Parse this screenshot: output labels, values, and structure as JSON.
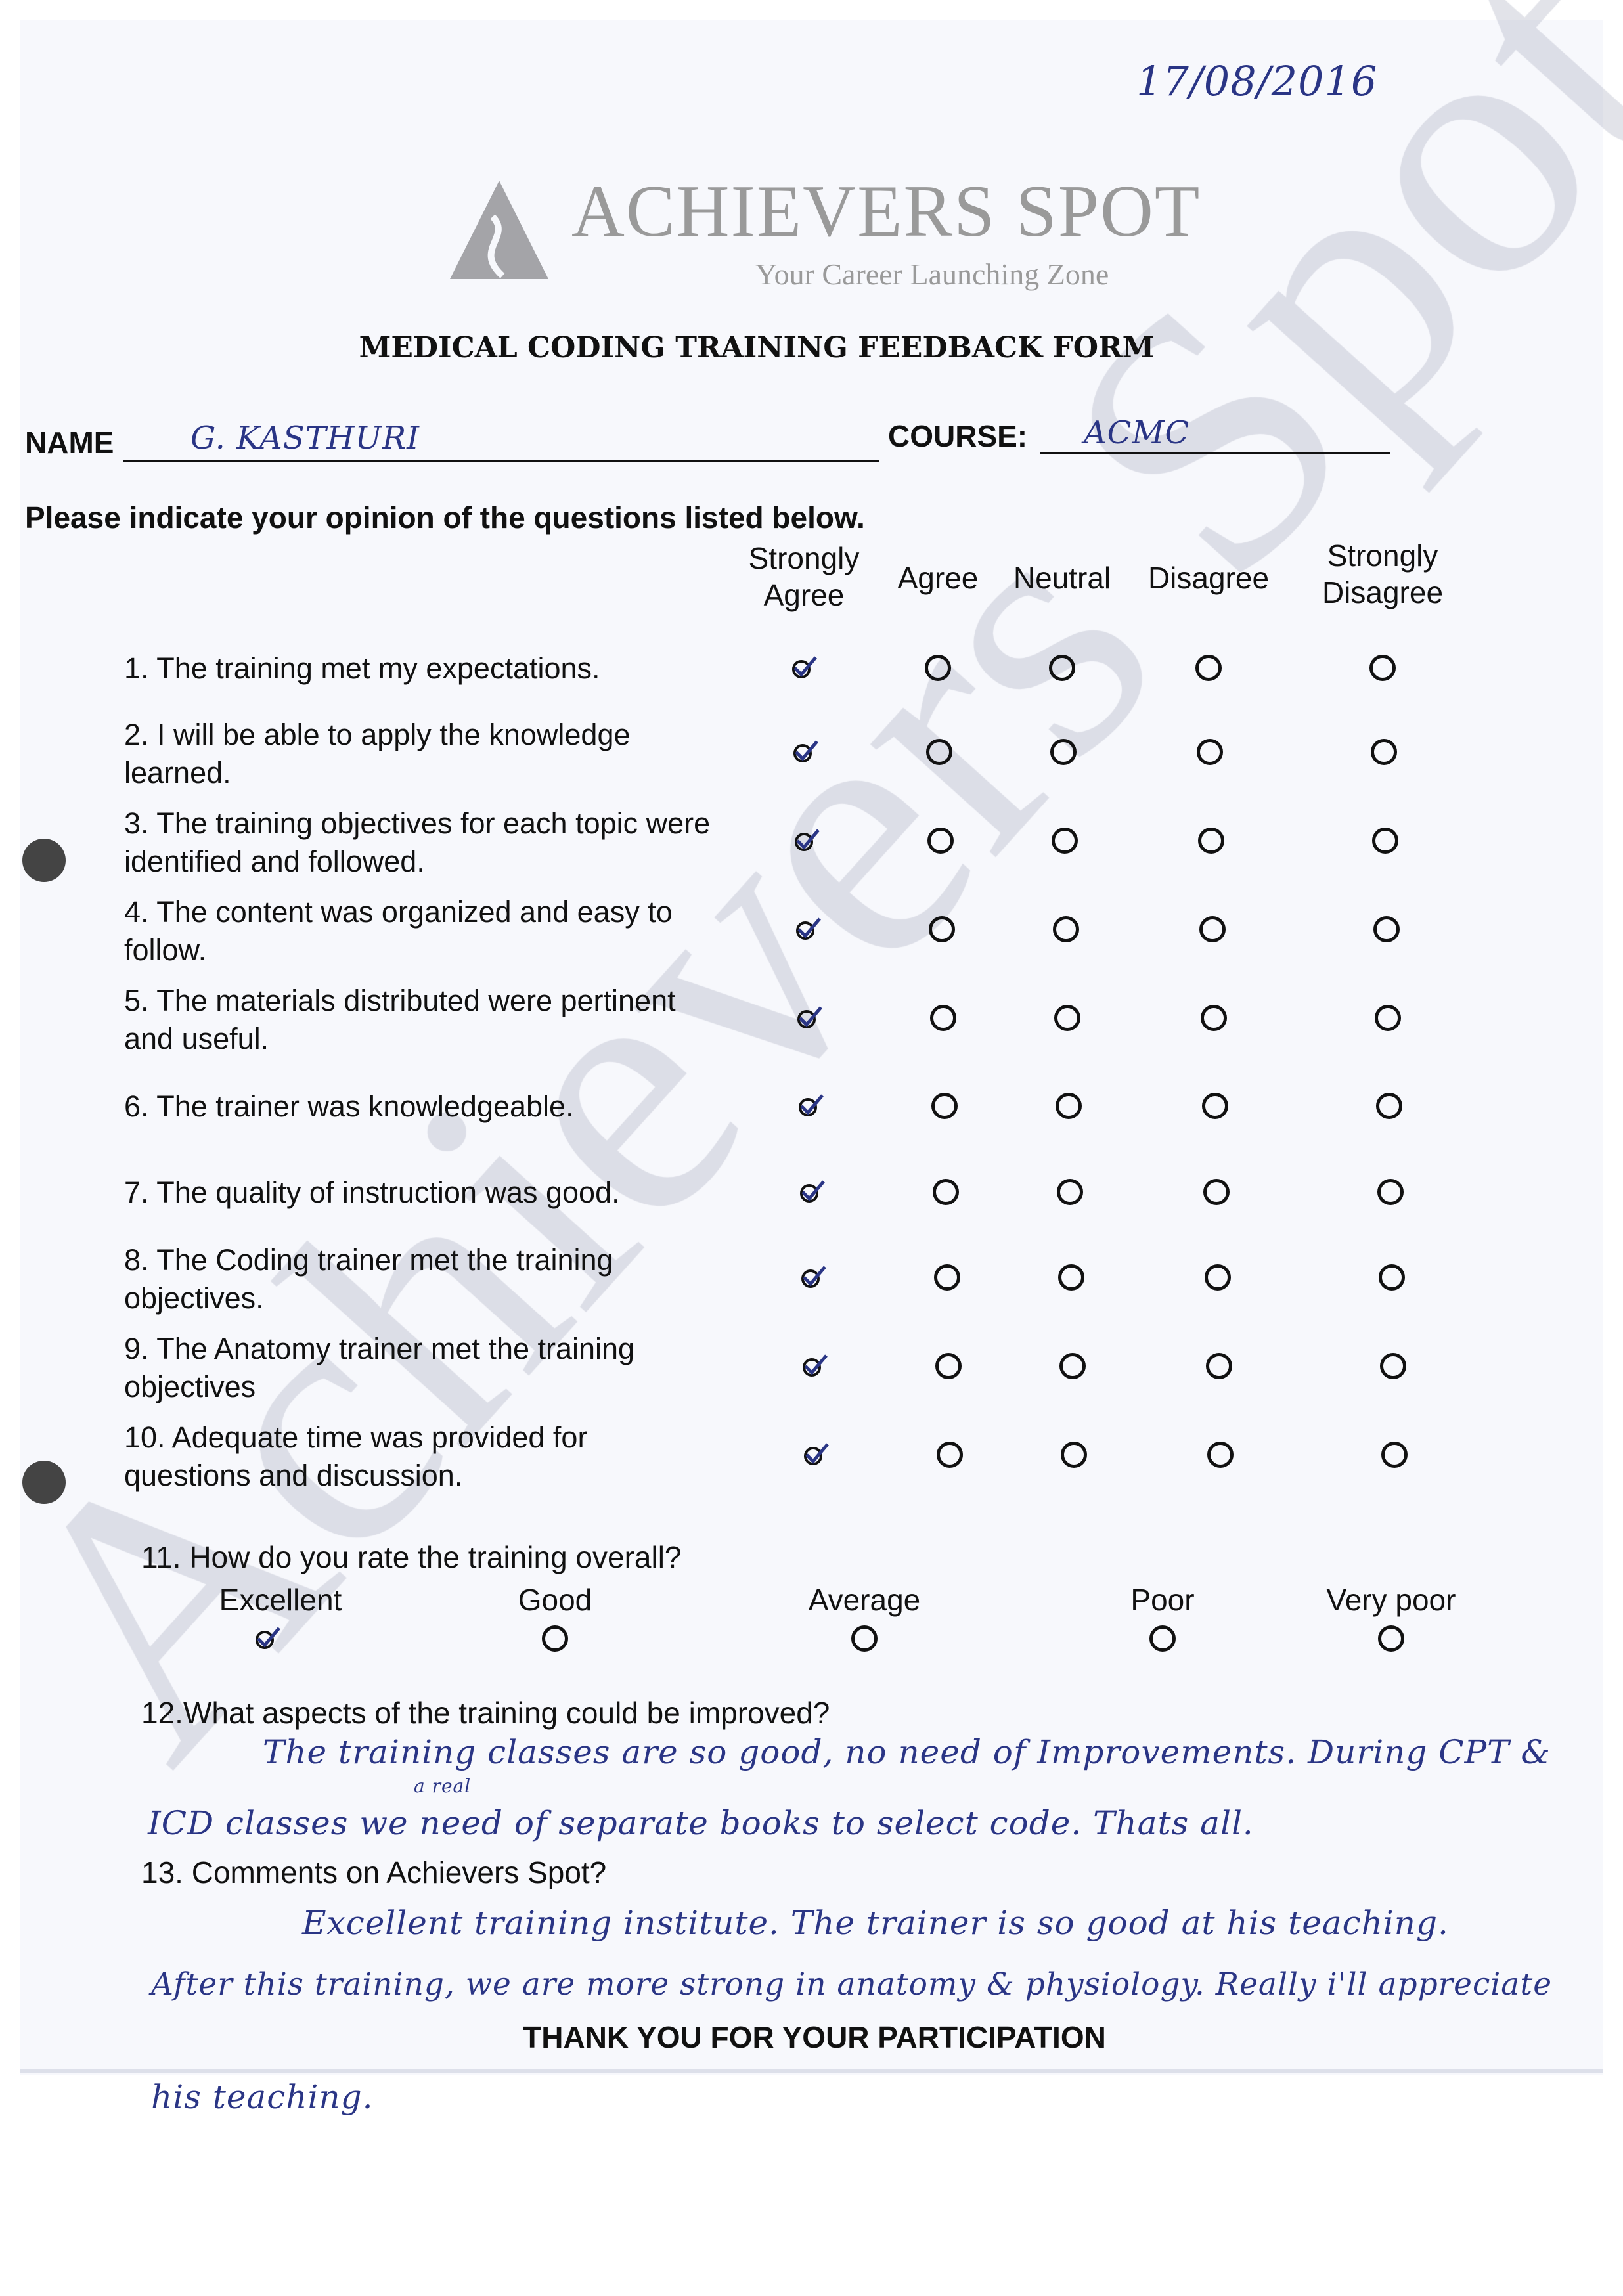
{
  "date": "17/08/2016",
  "logo": {
    "name": "ACHIEVERS SPOT",
    "tagline": "Your Career Launching Zone"
  },
  "watermark": "Achievers Spot",
  "form_title": "MEDICAL CODING TRAINING FEEDBACK FORM",
  "name_label": "NAME",
  "name_value": "G. KASTHURI",
  "course_label": "COURSE:",
  "course_value": "ACMC",
  "instruction": "Please indicate your opinion of the questions listed below.",
  "scale": [
    "Strongly Agree",
    "Agree",
    "Neutral",
    "Disagree",
    "Strongly Disagree"
  ],
  "questions": [
    {
      "text": "1. The training met my expectations.",
      "answer": "Strongly Agree"
    },
    {
      "text": "2. I will be able to apply the knowledge learned.",
      "answer": "Strongly Agree"
    },
    {
      "text": "3. The training objectives for each topic were identified and followed.",
      "answer": "Strongly Agree"
    },
    {
      "text": "4. The content was organized and easy to follow.",
      "answer": "Strongly Agree"
    },
    {
      "text": "5. The materials distributed were pertinent and useful.",
      "answer": "Strongly Agree"
    },
    {
      "text": "6. The trainer was knowledgeable.",
      "answer": "Strongly Agree"
    },
    {
      "text": "7. The quality of instruction was good.",
      "answer": "Strongly Agree"
    },
    {
      "text": "8. The Coding trainer met the training objectives.",
      "answer": "Strongly Agree"
    },
    {
      "text": "9. The Anatomy trainer met the training objectives",
      "answer": "Strongly Agree"
    },
    {
      "text": "10. Adequate time was provided for questions and discussion.",
      "answer": "Strongly Agree"
    }
  ],
  "q11": {
    "text": "11. How do you rate the training overall?",
    "options": [
      "Excellent",
      "Good",
      "Average",
      "Poor",
      "Very poor"
    ],
    "answer": "Excellent"
  },
  "q12": {
    "text": "12.What aspects of the training could be improved?",
    "answer_lines": [
      "The training classes are so good, no need of Improvements. During CPT &",
      "ICD classes we need of separate books to select code. Thats all."
    ],
    "insert": "a real"
  },
  "q13": {
    "text": "13. Comments on Achievers Spot?",
    "answer_lines": [
      "Excellent training institute. The trainer is so good at his teaching.",
      "After this training, we are more strong in anatomy & physiology. Really i'll appreciate",
      "his teaching."
    ]
  },
  "footer": "THANK YOU FOR YOUR PARTICIPATION",
  "colors": {
    "ink": "#2a3585",
    "print": "#111111",
    "logo": "#9a9a9a"
  }
}
